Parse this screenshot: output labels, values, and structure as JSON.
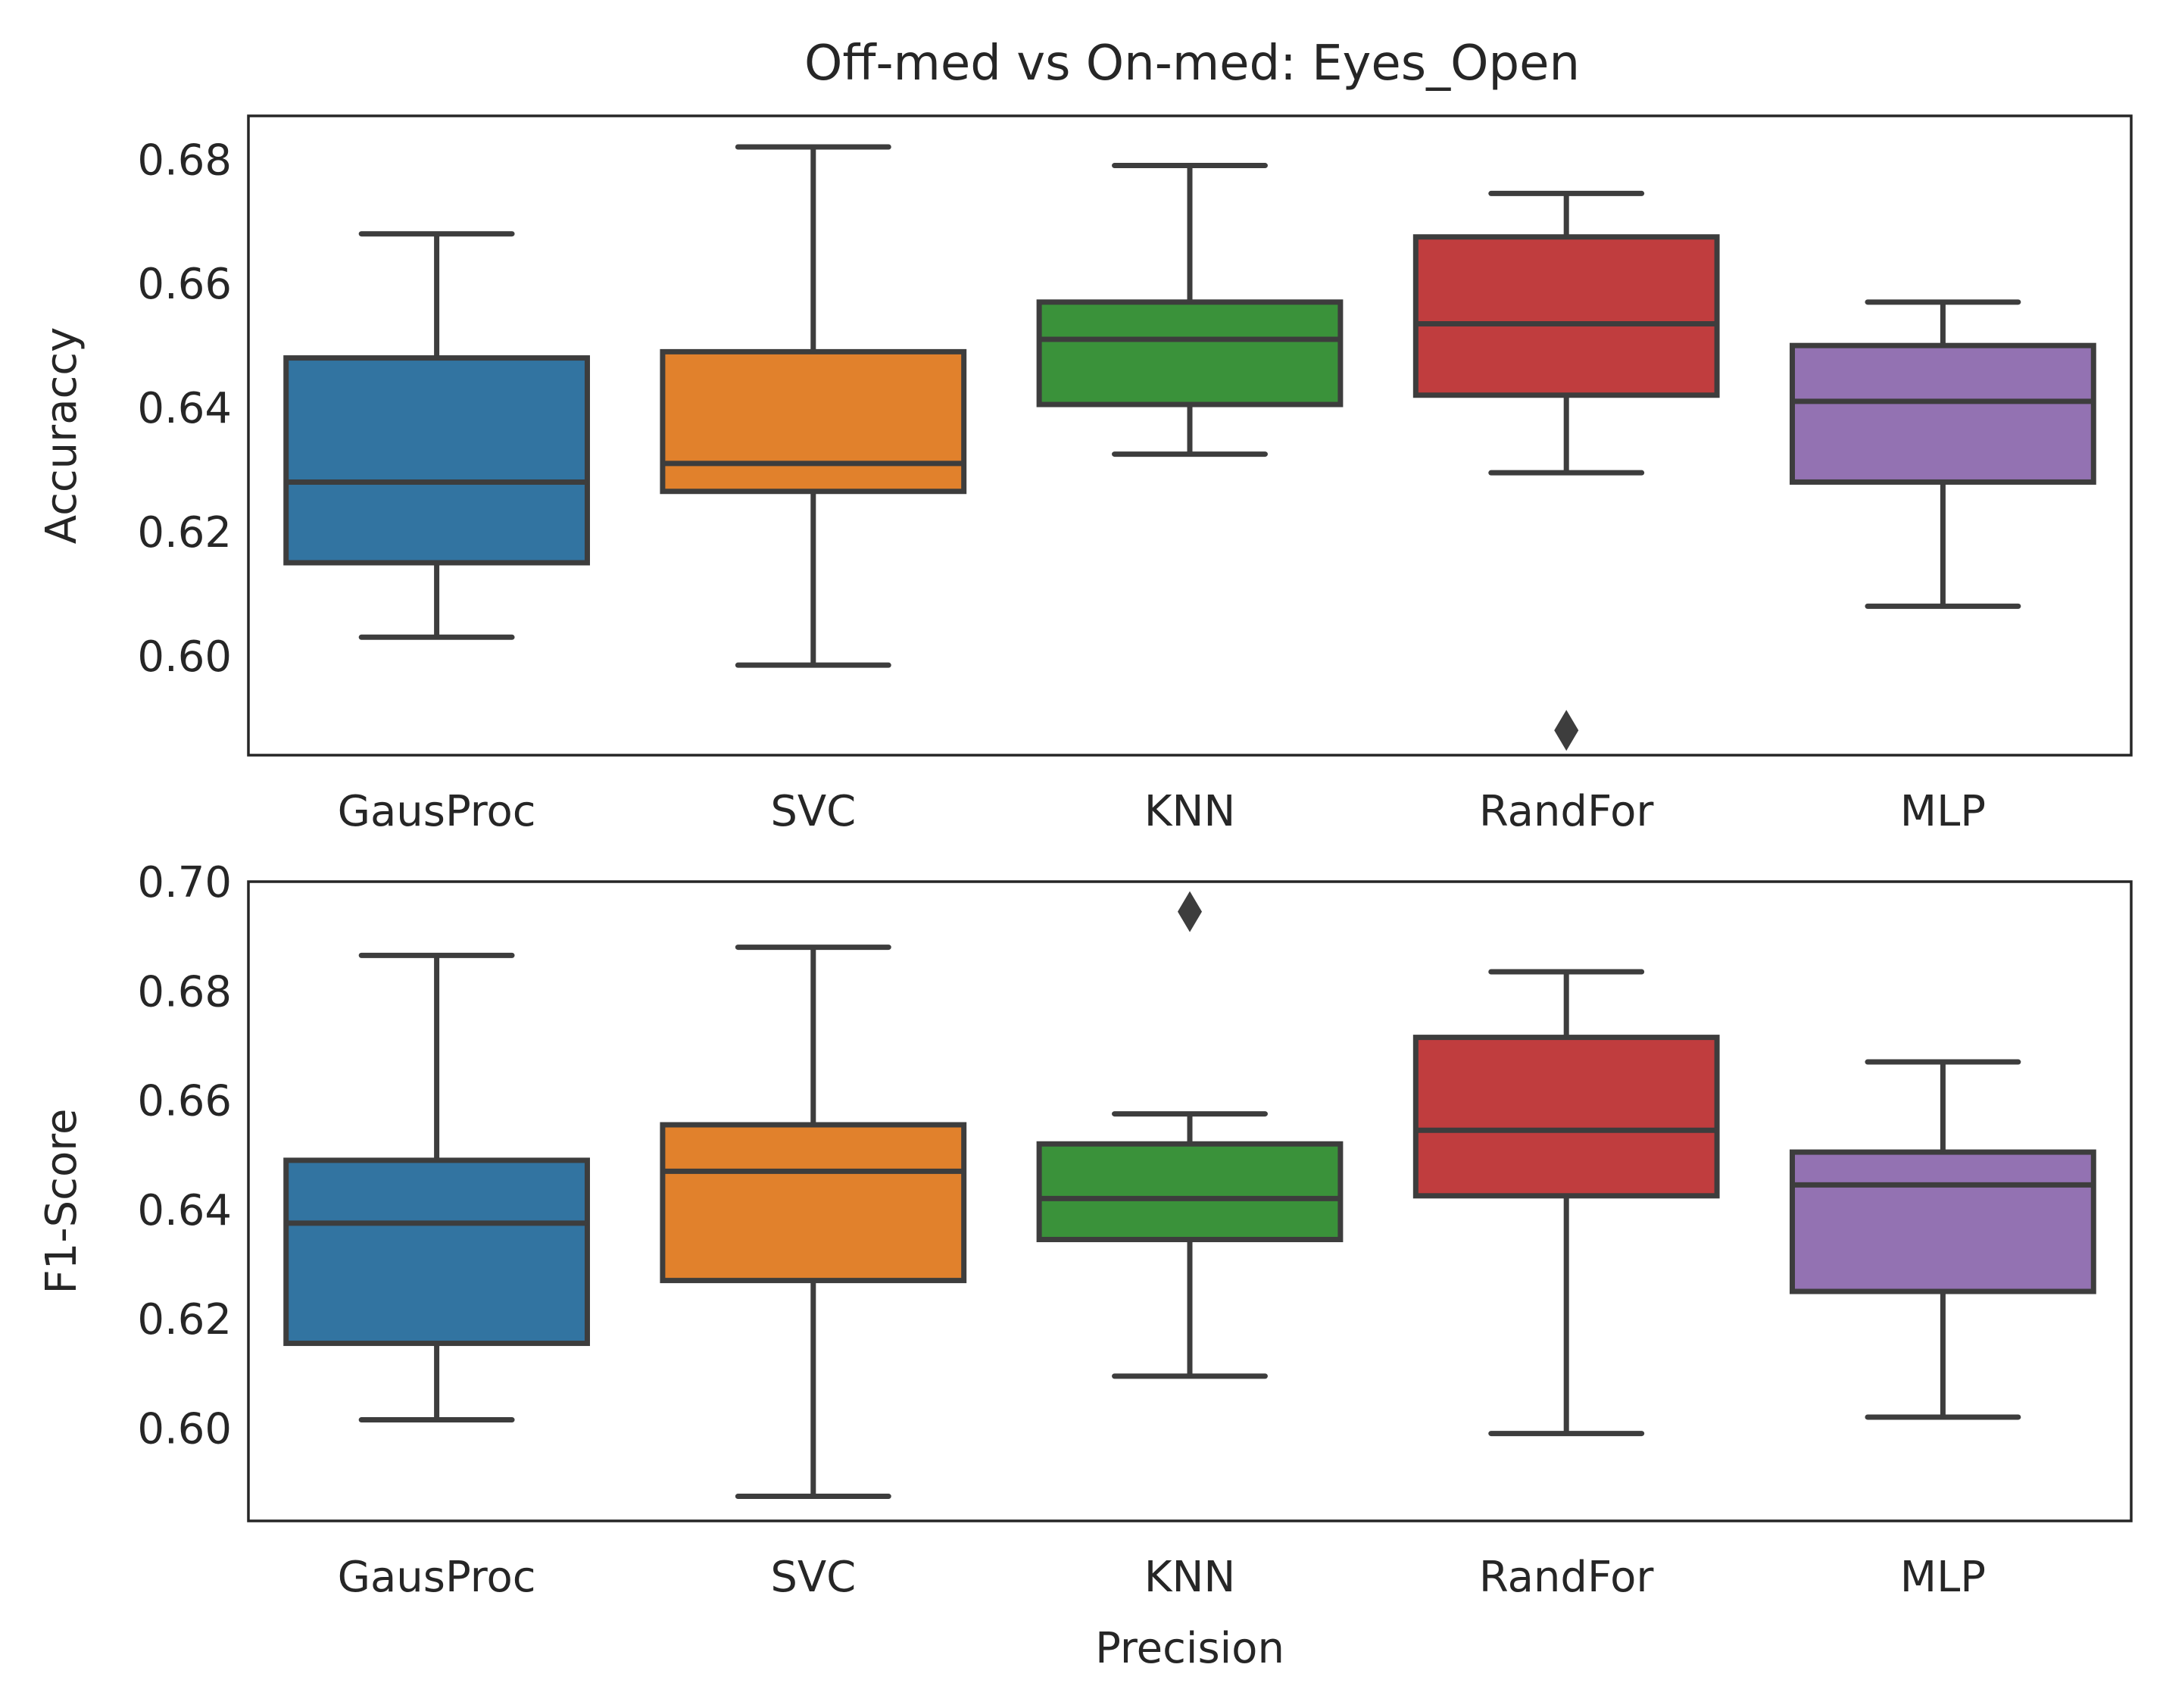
{
  "figure": {
    "title": "Off-med vs On-med: Eyes_Open"
  },
  "colors": {
    "GausProc": "#3274a1",
    "SVC": "#e1812c",
    "KNN": "#3a923a",
    "RandFor": "#c03d3e",
    "MLP": "#9372b2",
    "line": "#3d3d3d",
    "frame": "#262626"
  },
  "chart_data": [
    {
      "type": "box",
      "title": "Off-med vs On-med: Eyes_Open",
      "xlabel": "",
      "ylabel": "Accuraccy",
      "ylim": [
        0.584,
        0.687
      ],
      "yticks": [
        "0.60",
        "0.62",
        "0.64",
        "0.66",
        "0.68"
      ],
      "categories": [
        "GausProc",
        "SVC",
        "KNN",
        "RandFor",
        "MLP"
      ],
      "boxes": [
        {
          "name": "GausProc",
          "whislo": 0.603,
          "q1": 0.615,
          "med": 0.628,
          "q3": 0.648,
          "whishi": 0.668,
          "fliers": []
        },
        {
          "name": "SVC",
          "whislo": 0.5985,
          "q1": 0.6265,
          "med": 0.631,
          "q3": 0.649,
          "whishi": 0.682,
          "fliers": []
        },
        {
          "name": "KNN",
          "whislo": 0.6325,
          "q1": 0.6405,
          "med": 0.651,
          "q3": 0.657,
          "whishi": 0.679,
          "fliers": []
        },
        {
          "name": "RandFor",
          "whislo": 0.6295,
          "q1": 0.642,
          "med": 0.6535,
          "q3": 0.6675,
          "whishi": 0.6745,
          "fliers": [
            0.588
          ]
        },
        {
          "name": "MLP",
          "whislo": 0.608,
          "q1": 0.628,
          "med": 0.641,
          "q3": 0.65,
          "whishi": 0.657,
          "fliers": []
        }
      ],
      "grid": false
    },
    {
      "type": "box",
      "title": "",
      "xlabel": "Precision",
      "ylabel": "F1-Score",
      "ylim": [
        0.583,
        0.7
      ],
      "yticks": [
        "0.60",
        "0.62",
        "0.64",
        "0.66",
        "0.68",
        "0.70"
      ],
      "categories": [
        "GausProc",
        "SVC",
        "KNN",
        "RandFor",
        "MLP"
      ],
      "boxes": [
        {
          "name": "GausProc",
          "whislo": 0.6015,
          "q1": 0.6155,
          "med": 0.6375,
          "q3": 0.649,
          "whishi": 0.6865,
          "fliers": []
        },
        {
          "name": "SVC",
          "whislo": 0.5875,
          "q1": 0.627,
          "med": 0.647,
          "q3": 0.6555,
          "whishi": 0.688,
          "fliers": []
        },
        {
          "name": "KNN",
          "whislo": 0.6095,
          "q1": 0.6345,
          "med": 0.642,
          "q3": 0.652,
          "whishi": 0.6575,
          "fliers": [
            0.6945
          ]
        },
        {
          "name": "RandFor",
          "whislo": 0.599,
          "q1": 0.6425,
          "med": 0.6545,
          "q3": 0.6715,
          "whishi": 0.6835,
          "fliers": []
        },
        {
          "name": "MLP",
          "whislo": 0.602,
          "q1": 0.625,
          "med": 0.6445,
          "q3": 0.6505,
          "whishi": 0.667,
          "fliers": []
        }
      ],
      "grid": false
    }
  ]
}
